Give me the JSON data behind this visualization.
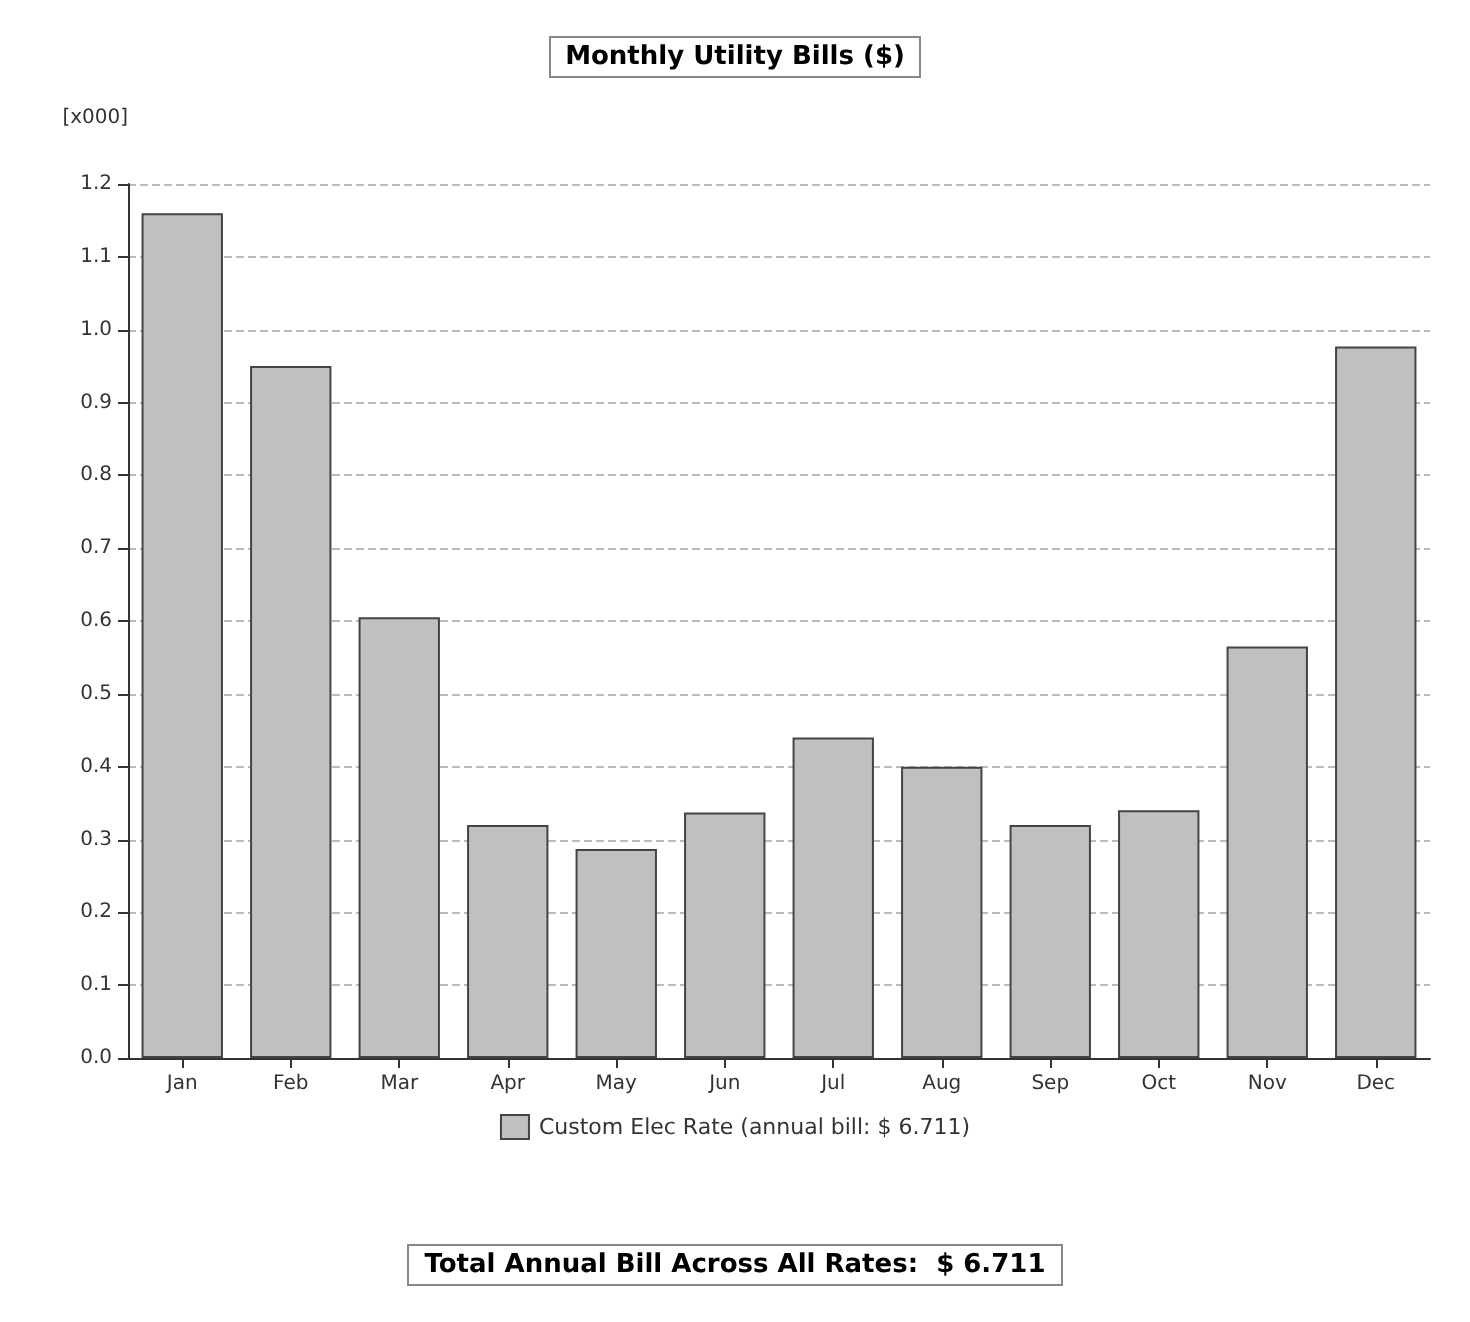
{
  "chart_data": {
    "type": "bar",
    "title": "Monthly Utility Bills ($)",
    "ylabel": "[x000]",
    "categories": [
      "Jan",
      "Feb",
      "Mar",
      "Apr",
      "May",
      "Jun",
      "Jul",
      "Aug",
      "Sep",
      "Oct",
      "Nov",
      "Dec"
    ],
    "series": [
      {
        "name": "Custom Elec Rate (annual bill: $ 6.711)",
        "color": "#c0c0c0",
        "values": [
          1.16,
          0.95,
          0.605,
          0.32,
          0.287,
          0.337,
          0.44,
          0.4,
          0.32,
          0.34,
          0.565,
          0.977
        ]
      }
    ],
    "ylim": [
      0,
      1.2
    ],
    "yticks": [
      {
        "value": 0,
        "label": "0.0"
      },
      {
        "value": 0.1,
        "label": "0.1"
      },
      {
        "value": 0.2,
        "label": "0.2"
      },
      {
        "value": 0.3,
        "label": "0.3"
      },
      {
        "value": 0.4,
        "label": "0.4"
      },
      {
        "value": 0.5,
        "label": "0.5"
      },
      {
        "value": 0.6,
        "label": "0.6"
      },
      {
        "value": 0.7,
        "label": "0.7"
      },
      {
        "value": 0.8,
        "label": "0.8"
      },
      {
        "value": 0.9,
        "label": "0.9"
      },
      {
        "value": 1,
        "label": "1.0"
      },
      {
        "value": 1.1,
        "label": "1.1"
      },
      {
        "value": 1.2,
        "label": "1.2"
      }
    ],
    "grid": "y",
    "legend": "bottom",
    "annotations": [
      "Total Annual Bill Across All Rates:  $ 6.711"
    ]
  }
}
